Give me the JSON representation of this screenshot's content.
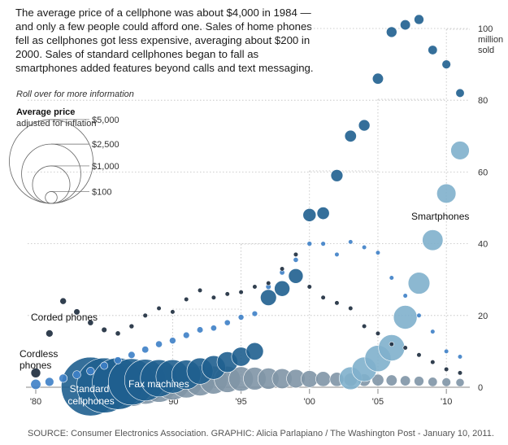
{
  "intro": "The average price of a cellphone was about $4,000 in 1984 — and only a few people could afford one. Sales of home phones fell as cellphones got less expensive, averaging about $200 in 2000. Sales of standard cellphones began to fall as smartphones added features beyond calls and text messaging.",
  "hint": "Roll over for more information",
  "legend": {
    "title": "Average price",
    "subtitle": "adjusted for inflation",
    "sizes": [
      {
        "label": "$5,000",
        "price": 5000
      },
      {
        "label": "$2,500",
        "price": 2500
      },
      {
        "label": "$1,000",
        "price": 1000
      },
      {
        "label": "$100",
        "price": 100
      }
    ]
  },
  "source": "SOURCE: Consumer Electronics Association. GRAPHIC: Alicia Parlapiano / The Washington Post - January 10, 2011.",
  "colors": {
    "standard_cellphones": "#1f5f8f",
    "smartphones": "#7fb0cc",
    "cordless_phones": "#3d7fc6",
    "corded_phones": "#1b2a3c",
    "fax_machines": "#7f95a6",
    "grid": "#bdbdbd",
    "axis": "#888888"
  },
  "chart_data": {
    "type": "scatter",
    "encoding": "bubble size = average price adjusted for inflation",
    "xlim": [
      1980,
      2011
    ],
    "ylim": [
      0,
      100
    ],
    "xticks": [
      {
        "value": 1980,
        "label": "'80"
      },
      {
        "value": 1985,
        "label": "'85"
      },
      {
        "value": 1990,
        "label": "'90"
      },
      {
        "value": 1995,
        "label": "'95"
      },
      {
        "value": 2000,
        "label": "'00"
      },
      {
        "value": 2005,
        "label": "'05"
      },
      {
        "value": 2010,
        "label": "'10"
      }
    ],
    "yticks": [
      {
        "value": 0,
        "label": "0"
      },
      {
        "value": 20,
        "label": "20"
      },
      {
        "value": 40,
        "label": "40"
      },
      {
        "value": 60,
        "label": "60"
      },
      {
        "value": 80,
        "label": "80"
      },
      {
        "value": 100,
        "label": "100"
      }
    ],
    "yunit": [
      "million",
      "sold"
    ],
    "grid": true,
    "series": [
      {
        "key": "fax_machines",
        "name": "Fax machines",
        "color": "#7f95a6",
        "points": [
          [
            1986,
            0.3,
            2500
          ],
          [
            1987,
            0.6,
            2100
          ],
          [
            1988,
            0.8,
            1800
          ],
          [
            1989,
            1,
            1600
          ],
          [
            1990,
            1.3,
            1400
          ],
          [
            1991,
            1.5,
            1200
          ],
          [
            1992,
            1.8,
            1050
          ],
          [
            1993,
            2,
            900
          ],
          [
            1994,
            2.2,
            800
          ],
          [
            1995,
            2.3,
            700
          ],
          [
            1996,
            2.4,
            600
          ],
          [
            1997,
            2.4,
            520
          ],
          [
            1998,
            2.4,
            460
          ],
          [
            1999,
            2.4,
            400
          ],
          [
            2000,
            2.3,
            330
          ],
          [
            2001,
            2.3,
            260
          ],
          [
            2002,
            2.2,
            230
          ],
          [
            2003,
            2.1,
            200
          ],
          [
            2004,
            2,
            180
          ],
          [
            2005,
            2,
            160
          ],
          [
            2006,
            1.9,
            140
          ],
          [
            2007,
            1.8,
            120
          ],
          [
            2008,
            1.7,
            110
          ],
          [
            2009,
            1.5,
            100
          ],
          [
            2010,
            1.4,
            90
          ],
          [
            2011,
            1.3,
            80
          ]
        ]
      },
      {
        "key": "smartphones",
        "name": "Smartphones",
        "color": "#7fb0cc",
        "points": [
          [
            2003,
            2.5,
            600
          ],
          [
            2004,
            5,
            700
          ],
          [
            2005,
            8,
            800
          ],
          [
            2006,
            11,
            800
          ],
          [
            2007,
            19.5,
            650
          ],
          [
            2008,
            29,
            550
          ],
          [
            2009,
            41,
            500
          ],
          [
            2010,
            54,
            430
          ],
          [
            2011,
            66,
            400
          ]
        ]
      },
      {
        "key": "standard_cellphones",
        "name": "Standard cellphones",
        "color": "#1f5f8f",
        "points": [
          [
            1984,
            0.2,
            4000
          ],
          [
            1985,
            0.5,
            3500
          ],
          [
            1986,
            1,
            3100
          ],
          [
            1987,
            1.5,
            2500
          ],
          [
            1988,
            2,
            2000
          ],
          [
            1989,
            2.5,
            1600
          ],
          [
            1990,
            3,
            1300
          ],
          [
            1991,
            3.5,
            1000
          ],
          [
            1992,
            4.5,
            800
          ],
          [
            1993,
            5.5,
            650
          ],
          [
            1994,
            7,
            500
          ],
          [
            1995,
            8.5,
            420
          ],
          [
            1996,
            10,
            350
          ],
          [
            1997,
            25,
            300
          ],
          [
            1998,
            27.5,
            280
          ],
          [
            1999,
            31,
            250
          ],
          [
            2000,
            48,
            200
          ],
          [
            2001,
            48.5,
            180
          ],
          [
            2002,
            59,
            170
          ],
          [
            2003,
            70,
            160
          ],
          [
            2004,
            73,
            150
          ],
          [
            2005,
            86,
            140
          ],
          [
            2006,
            99,
            130
          ],
          [
            2007,
            101,
            120
          ],
          [
            2008,
            102.5,
            110
          ],
          [
            2009,
            94,
            100
          ],
          [
            2010,
            90,
            90
          ],
          [
            2011,
            82,
            85
          ]
        ]
      },
      {
        "key": "cordless_phones",
        "name": "Cordless phones",
        "color": "#3d7fc6",
        "points": [
          [
            1980,
            0.8,
            120
          ],
          [
            1981,
            1.5,
            90
          ],
          [
            1982,
            2.5,
            80
          ],
          [
            1983,
            3.5,
            75
          ],
          [
            1984,
            4.5,
            70
          ],
          [
            1985,
            6,
            65
          ],
          [
            1986,
            7.5,
            60
          ],
          [
            1987,
            9,
            58
          ],
          [
            1988,
            10.5,
            55
          ],
          [
            1989,
            12,
            52
          ],
          [
            1990,
            13,
            50
          ],
          [
            1991,
            14.5,
            48
          ],
          [
            1992,
            16,
            45
          ],
          [
            1993,
            16.5,
            42
          ],
          [
            1994,
            18,
            40
          ],
          [
            1995,
            19.5,
            38
          ],
          [
            1996,
            20.5,
            36
          ],
          [
            1997,
            28,
            34
          ],
          [
            1998,
            32,
            32
          ],
          [
            1999,
            35.5,
            30
          ],
          [
            2000,
            40,
            28
          ],
          [
            2001,
            40,
            26
          ],
          [
            2002,
            37,
            24
          ],
          [
            2003,
            40.5,
            22
          ],
          [
            2004,
            39,
            20
          ],
          [
            2005,
            37.5,
            18
          ],
          [
            2006,
            30.5,
            16
          ],
          [
            2007,
            25.5,
            15
          ],
          [
            2008,
            20,
            14
          ],
          [
            2009,
            15.5,
            13
          ],
          [
            2010,
            10,
            12
          ],
          [
            2011,
            8.5,
            11
          ]
        ]
      },
      {
        "key": "corded_phones",
        "name": "Corded phones",
        "color": "#1b2a3c",
        "points": [
          [
            1980,
            4,
            110
          ],
          [
            1981,
            15,
            60
          ],
          [
            1982,
            24,
            50
          ],
          [
            1983,
            21,
            45
          ],
          [
            1984,
            18,
            40
          ],
          [
            1985,
            16,
            35
          ],
          [
            1986,
            15,
            30
          ],
          [
            1987,
            17,
            28
          ],
          [
            1988,
            20,
            26
          ],
          [
            1989,
            22,
            24
          ],
          [
            1990,
            21,
            22
          ],
          [
            1991,
            24.5,
            20
          ],
          [
            1992,
            27,
            18
          ],
          [
            1993,
            25,
            17
          ],
          [
            1994,
            26,
            16
          ],
          [
            1995,
            26.5,
            15
          ],
          [
            1996,
            28,
            14
          ],
          [
            1997,
            29,
            13
          ],
          [
            1998,
            33,
            12
          ],
          [
            1999,
            37,
            11
          ],
          [
            2000,
            28,
            10
          ],
          [
            2001,
            25,
            9
          ],
          [
            2002,
            23.5,
            8
          ],
          [
            2003,
            22,
            7.5
          ],
          [
            2004,
            17,
            7
          ],
          [
            2005,
            15,
            6.5
          ],
          [
            2006,
            12,
            6
          ],
          [
            2007,
            11,
            5.5
          ],
          [
            2008,
            9,
            5
          ],
          [
            2009,
            7,
            4.5
          ],
          [
            2010,
            5,
            4
          ],
          [
            2011,
            4,
            3.5
          ]
        ]
      }
    ]
  },
  "labels": {
    "fax_machines": "Fax machines",
    "smartphones": "Smartphones",
    "standard_cellphones": [
      "Standard",
      "cellphones"
    ],
    "cordless_phones": [
      "Cordless",
      "phones"
    ],
    "corded_phones": "Corded phones"
  }
}
